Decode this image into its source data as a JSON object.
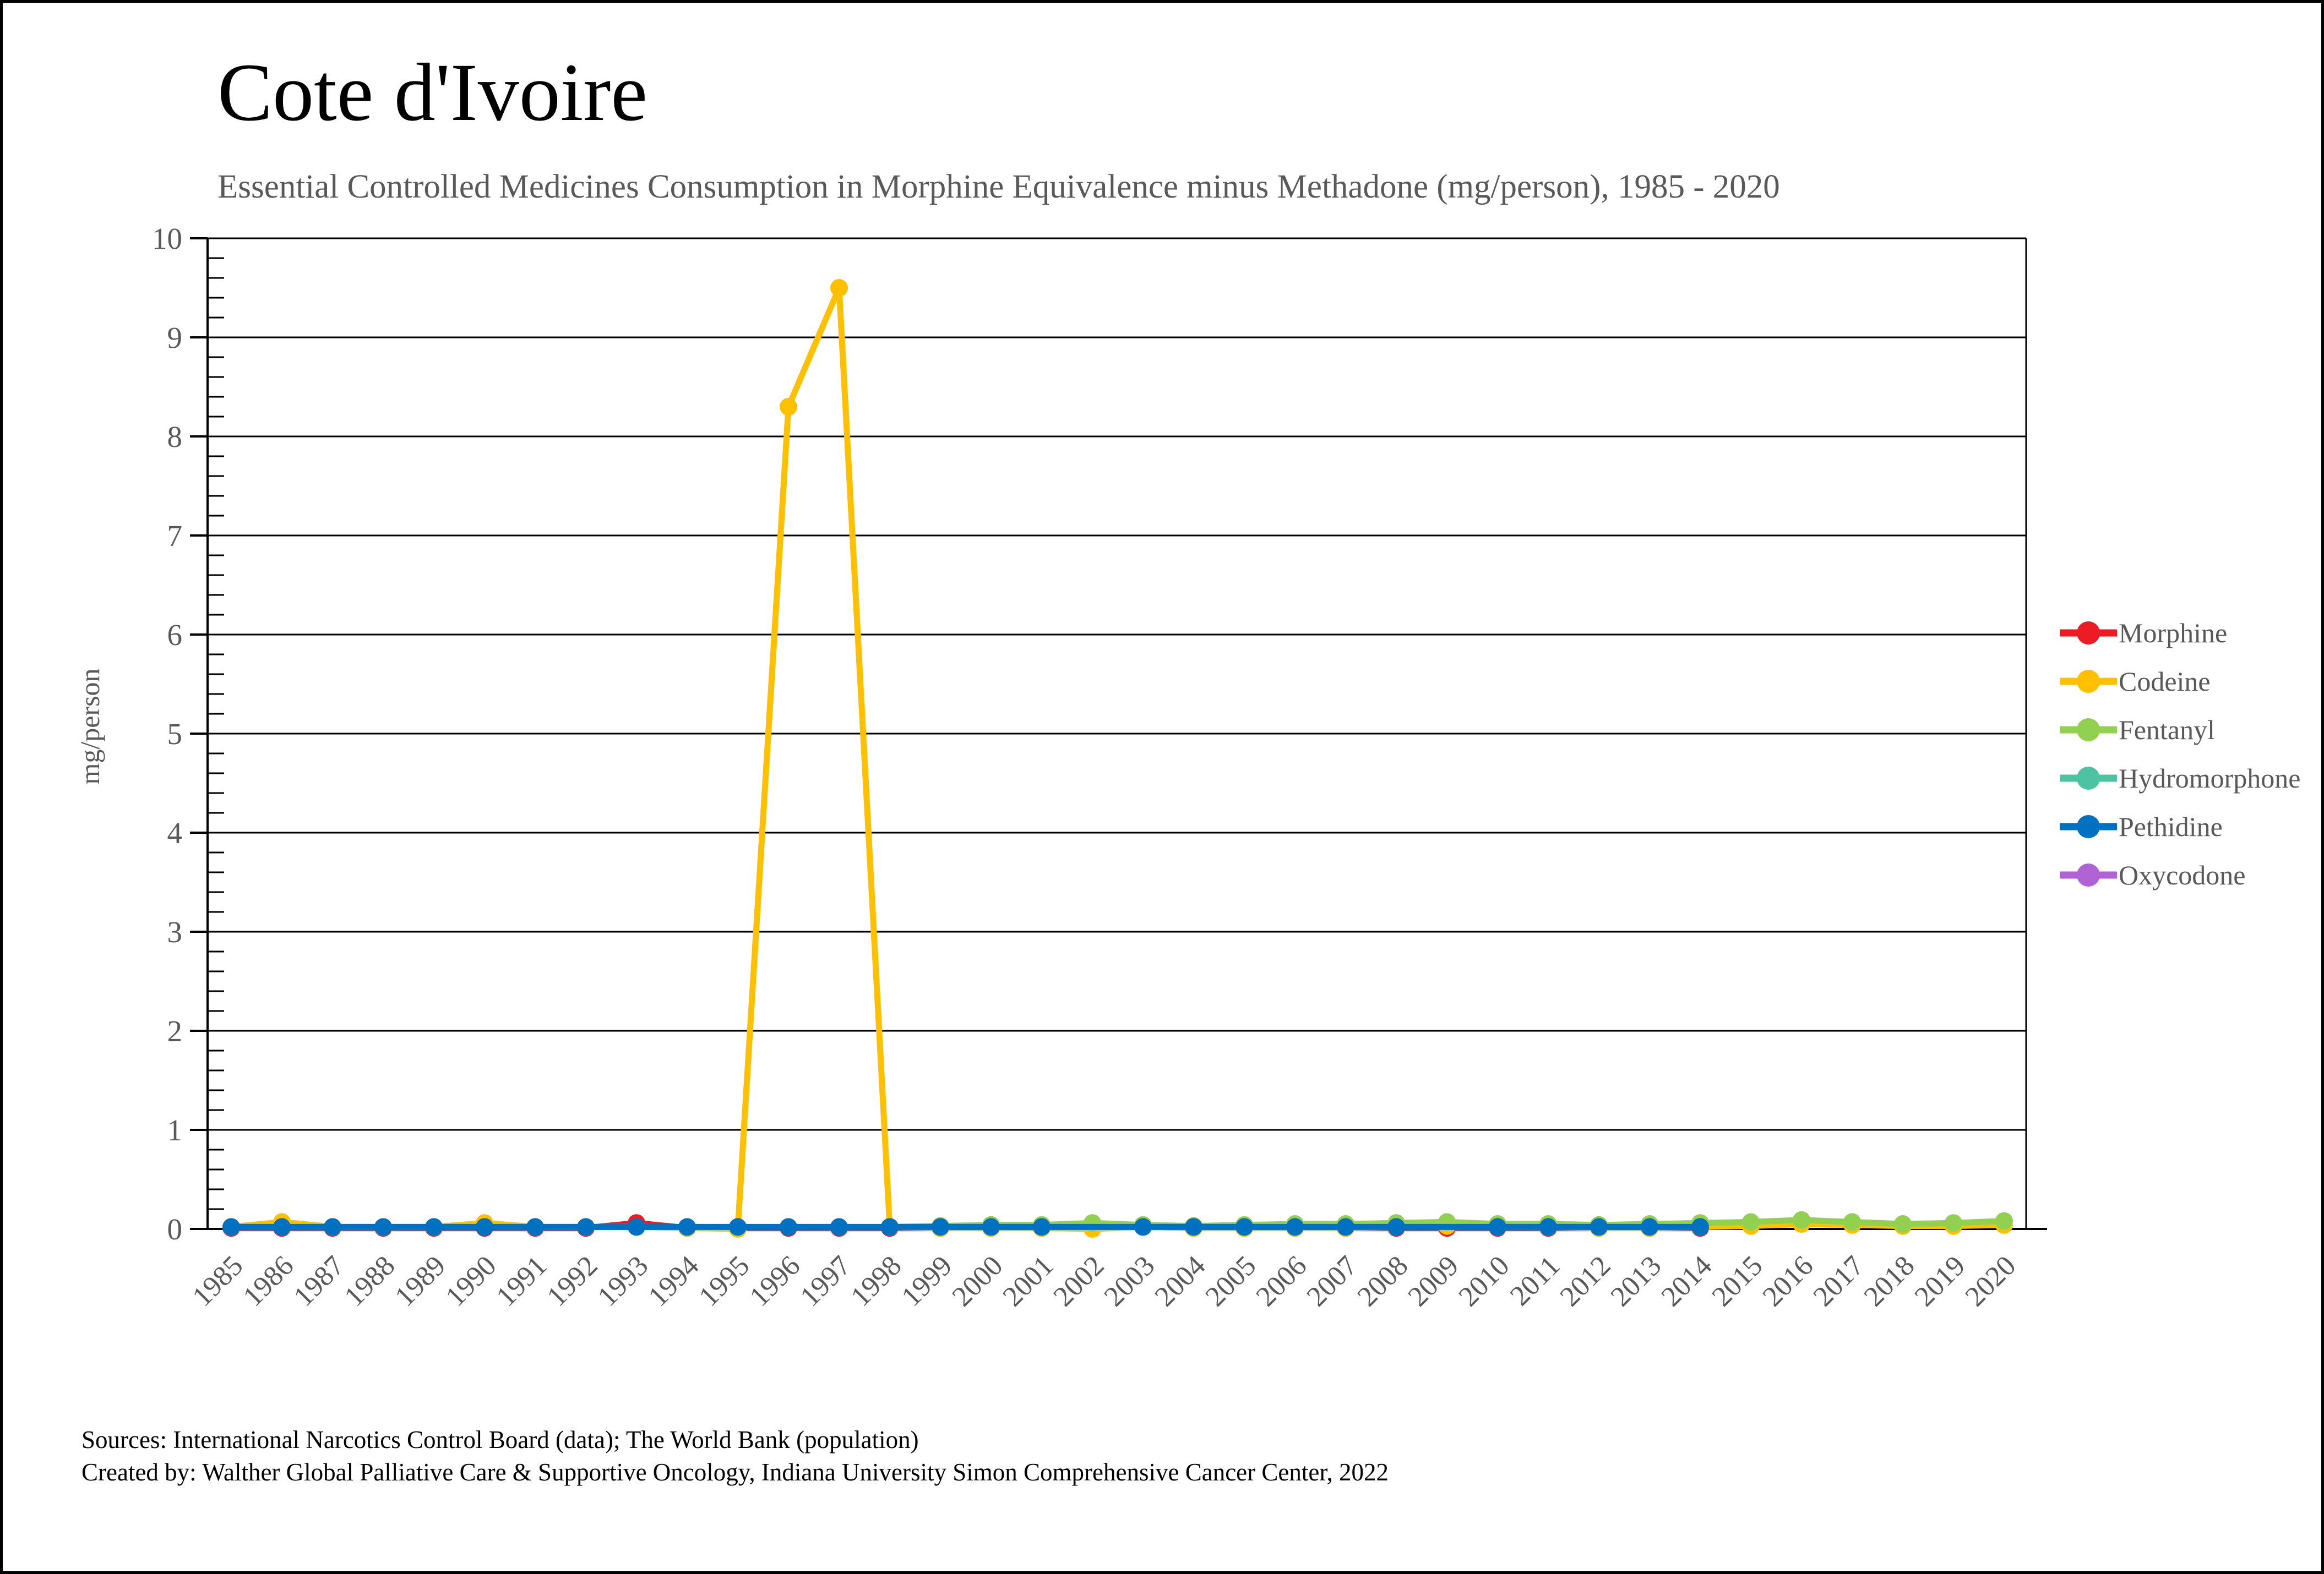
{
  "header": {
    "title": "Cote d'Ivoire",
    "subtitle": "Essential Controlled Medicines Consumption in Morphine Equivalence minus Methadone (mg/person), 1985 - 2020"
  },
  "footer": {
    "source_line": "Sources: International Narcotics Control Board (data); The World Bank (population)",
    "created_line": "Created by: Walther Global Palliative Care & Supportive Oncology, Indiana University Simon Comprehensive Cancer Center, 2022"
  },
  "colors": {
    "axis": "#000000",
    "tick_label": "#595959",
    "legend_text": "#595959",
    "subtitle_text": "#595959"
  },
  "chart_data": {
    "type": "line",
    "title": "Cote d'Ivoire",
    "subtitle": "Essential Controlled Medicines Consumption in Morphine Equivalence minus Methadone (mg/person), 1985 - 2020",
    "xlabel": "",
    "ylabel": "mg/person",
    "ylim": [
      0,
      10
    ],
    "ytick_interval": 1,
    "y_minor_interval": 0.2,
    "grid": true,
    "legend_position": "right",
    "marker": "circle",
    "x": [
      1985,
      1986,
      1987,
      1988,
      1989,
      1990,
      1991,
      1992,
      1993,
      1994,
      1995,
      1996,
      1997,
      1998,
      1999,
      2000,
      2001,
      2002,
      2003,
      2004,
      2005,
      2006,
      2007,
      2008,
      2009,
      2010,
      2011,
      2012,
      2013,
      2014,
      2015,
      2016,
      2017,
      2018,
      2019,
      2020
    ],
    "series": [
      {
        "name": "Morphine",
        "color": "#ED1C24",
        "values": [
          0.01,
          0.01,
          0.01,
          0.01,
          0.01,
          0.01,
          0.01,
          0.01,
          0.06,
          0.01,
          0.01,
          0.01,
          0.01,
          0.01,
          0.01,
          0.01,
          0.01,
          0.01,
          0.02,
          0.01,
          0.01,
          0.01,
          0.01,
          0.01,
          0.01,
          0.01,
          0.01,
          0.01,
          0.01,
          0.01,
          null,
          null,
          null,
          null,
          null,
          null
        ]
      },
      {
        "name": "Codeine",
        "color": "#FFC000",
        "values": [
          0.02,
          0.07,
          0.02,
          0.02,
          0.02,
          0.06,
          0.02,
          0.02,
          0.02,
          0.01,
          0.0,
          8.3,
          9.5,
          0.02,
          0.01,
          0.01,
          0.01,
          0.0,
          0.02,
          0.01,
          0.01,
          0.01,
          0.01,
          0.02,
          0.03,
          0.02,
          0.02,
          0.01,
          0.01,
          0.02,
          0.03,
          0.05,
          0.04,
          0.03,
          0.03,
          0.04
        ]
      },
      {
        "name": "Fentanyl",
        "color": "#92D050",
        "values": [
          null,
          null,
          null,
          null,
          null,
          null,
          null,
          null,
          null,
          null,
          null,
          null,
          null,
          0.02,
          0.03,
          0.04,
          0.04,
          0.06,
          0.04,
          0.03,
          0.04,
          0.05,
          0.05,
          0.06,
          0.07,
          0.05,
          0.05,
          0.04,
          0.05,
          0.06,
          0.07,
          0.09,
          0.07,
          0.05,
          0.06,
          0.08
        ]
      },
      {
        "name": "Hydromorphone",
        "color": "#4EC3A1",
        "values": [
          null,
          null,
          null,
          null,
          null,
          null,
          null,
          null,
          null,
          null,
          null,
          null,
          null,
          null,
          null,
          null,
          null,
          null,
          null,
          null,
          null,
          null,
          null,
          null,
          null,
          null,
          null,
          null,
          null,
          null,
          null,
          null,
          null,
          null,
          null,
          null
        ]
      },
      {
        "name": "Pethidine",
        "color": "#0070C0",
        "values": [
          0.02,
          0.02,
          0.02,
          0.02,
          0.02,
          0.02,
          0.02,
          0.02,
          0.02,
          0.02,
          0.02,
          0.02,
          0.02,
          0.02,
          0.02,
          0.02,
          0.02,
          null,
          0.02,
          0.02,
          0.02,
          0.02,
          0.02,
          0.02,
          null,
          0.02,
          0.02,
          0.02,
          0.02,
          0.02,
          null,
          null,
          null,
          null,
          null,
          null
        ]
      },
      {
        "name": "Oxycodone",
        "color": "#AF63D4",
        "values": [
          null,
          null,
          null,
          null,
          null,
          null,
          null,
          null,
          null,
          null,
          null,
          null,
          null,
          null,
          null,
          null,
          null,
          null,
          null,
          null,
          null,
          null,
          null,
          null,
          null,
          null,
          null,
          null,
          null,
          null,
          null,
          null,
          null,
          null,
          null,
          null
        ]
      }
    ]
  }
}
